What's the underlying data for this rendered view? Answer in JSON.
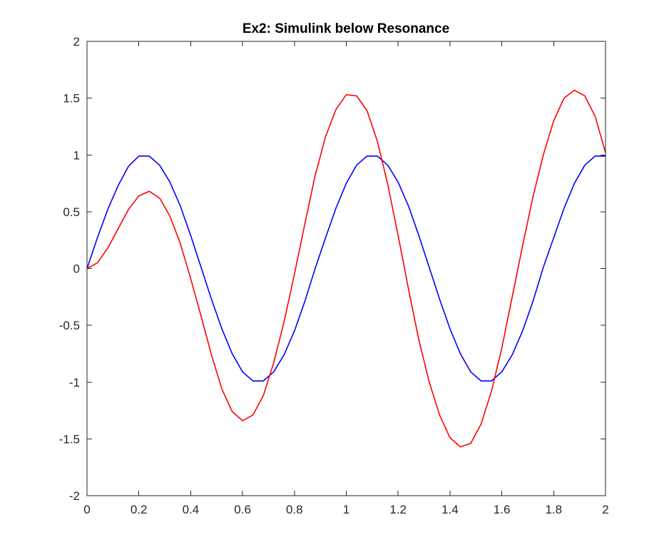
{
  "chart_data": {
    "type": "line",
    "title": "Ex2: Simulink below Resonance",
    "xlabel": "",
    "ylabel": "",
    "xlim": [
      0,
      2
    ],
    "ylim": [
      -2,
      2
    ],
    "grid": false,
    "x_ticks": [
      0,
      0.2,
      0.4,
      0.6,
      0.8,
      1,
      1.2,
      1.4,
      1.6,
      1.8,
      2
    ],
    "x_tick_labels": [
      "0",
      "0.2",
      "0.4",
      "0.6",
      "0.8",
      "1",
      "1.2",
      "1.4",
      "1.6",
      "1.8",
      "2"
    ],
    "y_ticks": [
      2,
      1.5,
      1,
      0.5,
      0,
      -0.5,
      -1,
      -1.5,
      -2
    ],
    "y_tick_labels": [
      "2",
      "1.5",
      "1",
      "0.5",
      "0",
      "-0.5",
      "-1",
      "-1.5",
      "-2"
    ],
    "series": [
      {
        "color": "#0000ff",
        "x": [
          0,
          0.04,
          0.08,
          0.12,
          0.16,
          0.2,
          0.24,
          0.28,
          0.32,
          0.36,
          0.4,
          0.44,
          0.48,
          0.52,
          0.56,
          0.6,
          0.64,
          0.68,
          0.72,
          0.76,
          0.8,
          0.84,
          0.88,
          0.92,
          0.96,
          1,
          1.04,
          1.08,
          1.12,
          1.16,
          1.2,
          1.24,
          1.28,
          1.32,
          1.36,
          1.4,
          1.44,
          1.48,
          1.52,
          1.56,
          1.6,
          1.64,
          1.68,
          1.72,
          1.76,
          1.8,
          1.84,
          1.88,
          1.92,
          1.96,
          2
        ],
        "y": [
          0,
          0.27,
          0.52,
          0.73,
          0.9,
          0.99,
          0.99,
          0.91,
          0.76,
          0.55,
          0.29,
          0.01,
          -0.27,
          -0.53,
          -0.75,
          -0.91,
          -0.99,
          -0.99,
          -0.91,
          -0.76,
          -0.55,
          -0.29,
          0,
          0.27,
          0.53,
          0.75,
          0.91,
          0.99,
          0.99,
          0.91,
          0.76,
          0.55,
          0.29,
          0.01,
          -0.27,
          -0.53,
          -0.75,
          -0.91,
          -0.99,
          -0.99,
          -0.91,
          -0.76,
          -0.55,
          -0.29,
          0.01,
          0.27,
          0.53,
          0.75,
          0.91,
          0.99,
          0.99
        ]
      },
      {
        "color": "#ff0000",
        "x": [
          0,
          0.04,
          0.08,
          0.12,
          0.16,
          0.2,
          0.24,
          0.28,
          0.32,
          0.36,
          0.4,
          0.44,
          0.48,
          0.52,
          0.56,
          0.6,
          0.64,
          0.68,
          0.72,
          0.76,
          0.8,
          0.84,
          0.88,
          0.92,
          0.96,
          1,
          1.04,
          1.08,
          1.12,
          1.16,
          1.2,
          1.24,
          1.28,
          1.32,
          1.36,
          1.4,
          1.44,
          1.48,
          1.52,
          1.56,
          1.6,
          1.64,
          1.68,
          1.72,
          1.76,
          1.8,
          1.84,
          1.88,
          1.92,
          1.96,
          2
        ],
        "y": [
          0,
          0.05,
          0.18,
          0.35,
          0.52,
          0.64,
          0.68,
          0.62,
          0.46,
          0.22,
          -0.09,
          -0.42,
          -0.76,
          -1.06,
          -1.26,
          -1.34,
          -1.29,
          -1.12,
          -0.83,
          -0.47,
          -0.05,
          0.39,
          0.82,
          1.16,
          1.4,
          1.53,
          1.52,
          1.39,
          1.12,
          0.74,
          0.29,
          -0.18,
          -0.63,
          -1.0,
          -1.29,
          -1.49,
          -1.57,
          -1.54,
          -1.37,
          -1.08,
          -0.7,
          -0.25,
          0.2,
          0.63,
          1.0,
          1.3,
          1.5,
          1.57,
          1.52,
          1.34,
          1.02
        ]
      }
    ]
  }
}
